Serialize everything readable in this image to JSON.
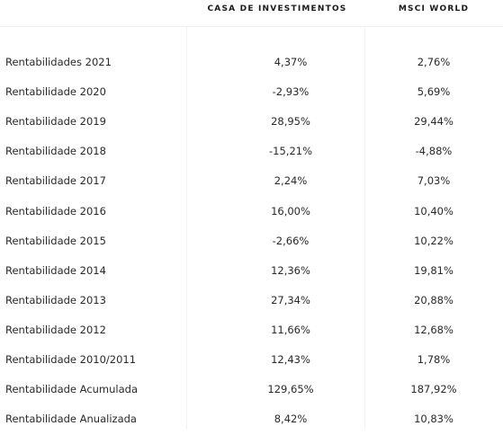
{
  "table": {
    "headers": {
      "col1": "CASA DE INVESTIMENTOS",
      "col2": "MSCI WORLD"
    },
    "rows": [
      {
        "label": "Rentabilidades 2021",
        "casa": "4,37%",
        "msci": "2,76%"
      },
      {
        "label": "Rentabilidade 2020",
        "casa": "-2,93%",
        "msci": "5,69%"
      },
      {
        "label": "Rentabilidade 2019",
        "casa": "28,95%",
        "msci": "29,44%"
      },
      {
        "label": "Rentabilidade 2018",
        "casa": "-15,21%",
        "msci": "-4,88%"
      },
      {
        "label": "Rentabilidade 2017",
        "casa": "2,24%",
        "msci": "7,03%"
      },
      {
        "label": "Rentabilidade 2016",
        "casa": "16,00%",
        "msci": "10,40%"
      },
      {
        "label": "Rentabilidade 2015",
        "casa": "-2,66%",
        "msci": "10,22%"
      },
      {
        "label": "Rentabilidade 2014",
        "casa": "12,36%",
        "msci": "19,81%"
      },
      {
        "label": "Rentabilidade 2013",
        "casa": "27,34%",
        "msci": "20,88%"
      },
      {
        "label": "Rentabilidade 2012",
        "casa": "11,66%",
        "msci": "12,68%"
      },
      {
        "label": "Rentabilidade 2010/2011",
        "casa": "12,43%",
        "msci": "1,78%"
      },
      {
        "label": "Rentabilidade Acumulada",
        "casa": "129,65%",
        "msci": "187,92%"
      },
      {
        "label": "Rentabilidade Anualizada",
        "casa": "8,42%",
        "msci": "10,83%"
      }
    ]
  }
}
